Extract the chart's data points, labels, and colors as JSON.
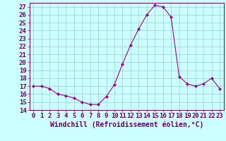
{
  "x": [
    0,
    1,
    2,
    3,
    4,
    5,
    6,
    7,
    8,
    9,
    10,
    11,
    12,
    13,
    14,
    15,
    16,
    17,
    18,
    19,
    20,
    21,
    22,
    23
  ],
  "y": [
    17.0,
    17.0,
    16.7,
    16.0,
    15.8,
    15.5,
    15.0,
    14.7,
    14.7,
    15.7,
    17.2,
    19.8,
    22.2,
    24.2,
    26.0,
    27.2,
    27.0,
    25.7,
    18.2,
    17.3,
    17.0,
    17.3,
    18.0,
    16.7
  ],
  "line_color": "#990099",
  "marker": "D",
  "marker_size": 2,
  "bg_color": "#ccffff",
  "grid_color": "#99cccc",
  "xlabel": "Windchill (Refroidissement éolien,°C)",
  "ylim": [
    14,
    27.5
  ],
  "yticks": [
    14,
    15,
    16,
    17,
    18,
    19,
    20,
    21,
    22,
    23,
    24,
    25,
    26,
    27
  ],
  "xticks": [
    0,
    1,
    2,
    3,
    4,
    5,
    6,
    7,
    8,
    9,
    10,
    11,
    12,
    13,
    14,
    15,
    16,
    17,
    18,
    19,
    20,
    21,
    22,
    23
  ],
  "label_color": "#660066",
  "tick_color": "#660066",
  "font_size": 6.5,
  "xlabel_font_size": 7
}
